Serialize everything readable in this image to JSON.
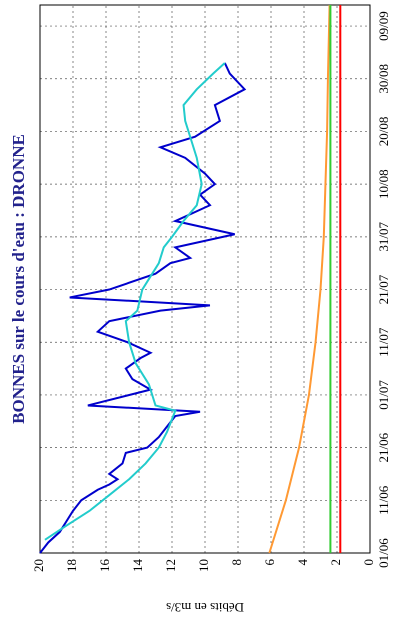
{
  "chart_data": {
    "type": "line",
    "title": "BONNES sur le cours d'eau : DRONNE",
    "y_label": "Débits en m3/s",
    "xlim": [
      0,
      104
    ],
    "xticks": [
      {
        "value": 0,
        "label": "01/06"
      },
      {
        "value": 10,
        "label": "11/06"
      },
      {
        "value": 20,
        "label": "21/06"
      },
      {
        "value": 30,
        "label": "01/07"
      },
      {
        "value": 40,
        "label": "11/07"
      },
      {
        "value": 50,
        "label": "21/07"
      },
      {
        "value": 60,
        "label": "31/07"
      },
      {
        "value": 70,
        "label": "10/08"
      },
      {
        "value": 80,
        "label": "20/08"
      },
      {
        "value": 90,
        "label": "30/08"
      },
      {
        "value": 100,
        "label": "09/09"
      }
    ],
    "ylim": [
      0,
      20
    ],
    "yticks": [
      0,
      2,
      4,
      6,
      8,
      10,
      12,
      14,
      16,
      18,
      20
    ],
    "grid": true,
    "series": [
      {
        "color": "#0000cc",
        "x": [
          0,
          2,
          4,
          6,
          8,
          10,
          12,
          13,
          14,
          15,
          17,
          19,
          20,
          22,
          24,
          26,
          26.8,
          28,
          31,
          33,
          35,
          37,
          38,
          40,
          42,
          44,
          46,
          47,
          48.5,
          50,
          53,
          55,
          56,
          58,
          60.5,
          63,
          66,
          68,
          70,
          72,
          75,
          77,
          79,
          82,
          85,
          88,
          91,
          93
        ],
        "values": [
          20,
          19.5,
          18.8,
          18.4,
          18,
          17.5,
          16.5,
          15.8,
          15.3,
          15.8,
          15,
          14.8,
          13.5,
          12.8,
          12.3,
          11.8,
          10.3,
          17.1,
          13.3,
          14.4,
          14.8,
          13.9,
          13.3,
          14.7,
          16.5,
          15.8,
          12.7,
          9.7,
          18.2,
          15.8,
          13,
          12.1,
          10.9,
          11.8,
          8.2,
          11.8,
          9.7,
          10.3,
          9.4,
          10,
          11.2,
          12.7,
          10.6,
          9.1,
          9.4,
          7.6,
          8.5,
          8.8
        ]
      },
      {
        "color": "#22cccc",
        "x": [
          2.5,
          5,
          8,
          11,
          14,
          17,
          20,
          23,
          27,
          28,
          32,
          36,
          40,
          44,
          46,
          50,
          55,
          58,
          60,
          63,
          66,
          70,
          75,
          78,
          82,
          85,
          88,
          91,
          93
        ],
        "values": [
          19.7,
          18.5,
          17,
          15.8,
          14.6,
          13.6,
          12.8,
          12.3,
          11.8,
          13,
          13.4,
          14.2,
          14.6,
          14.8,
          14.1,
          13.8,
          12.8,
          12.5,
          12,
          11.3,
          10.5,
          10.2,
          10.5,
          10.8,
          11.2,
          11.3,
          10.5,
          9.5,
          8.8
        ]
      },
      {
        "color": "#ff9933",
        "x": [
          0,
          10,
          20,
          30,
          40,
          50,
          60,
          70,
          80,
          90,
          104
        ],
        "values": [
          6.1,
          5.1,
          4.3,
          3.7,
          3.3,
          3.0,
          2.8,
          2.7,
          2.6,
          2.55,
          2.45
        ]
      },
      {
        "color": "#33cc33",
        "x": [
          0,
          104
        ],
        "values": [
          2.4,
          2.4
        ]
      },
      {
        "color": "#ff0000",
        "x": [
          0,
          104
        ],
        "values": [
          1.8,
          1.8
        ]
      }
    ]
  }
}
